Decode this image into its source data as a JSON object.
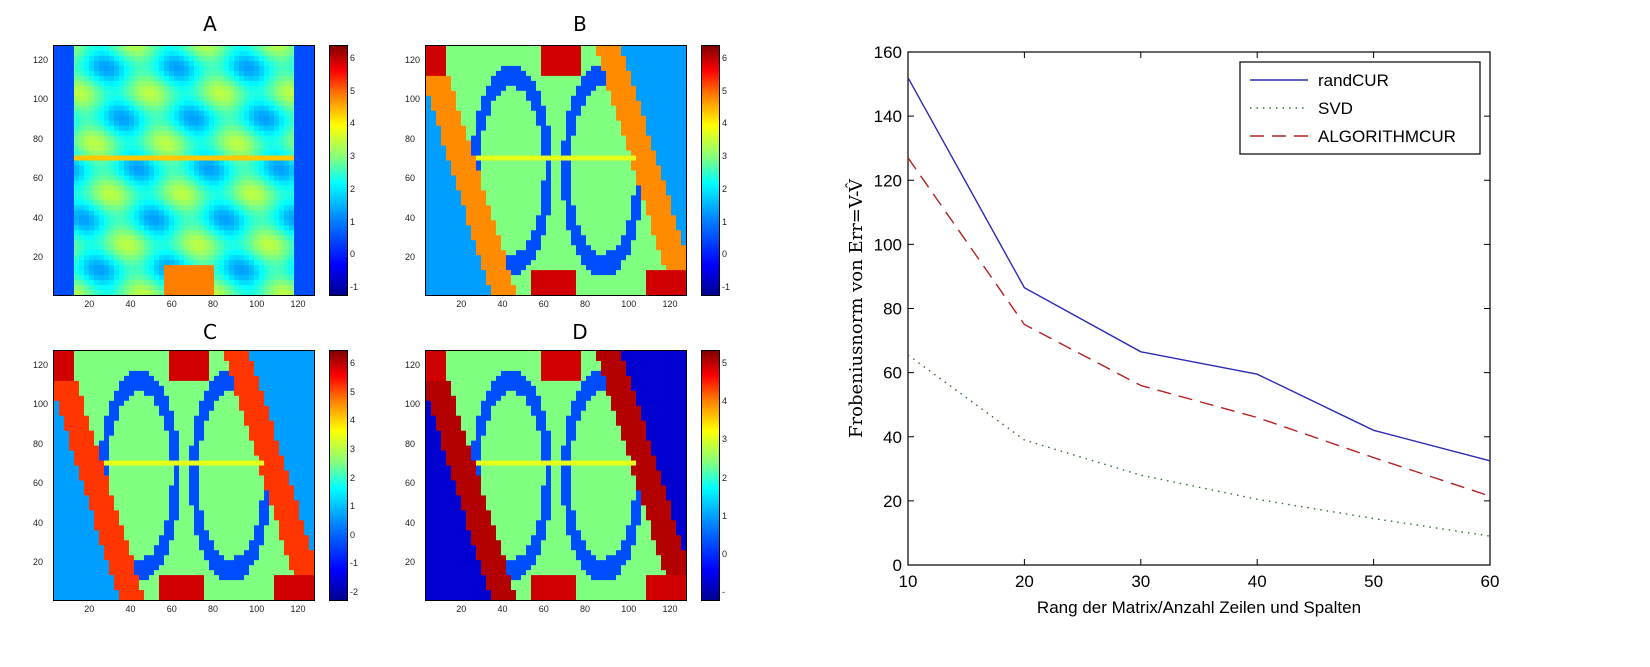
{
  "panels": [
    {
      "id": "A",
      "title": "A",
      "colorbar_ticks": [
        "6",
        "5",
        "4",
        "3",
        "2",
        "1",
        "0",
        "-1"
      ]
    },
    {
      "id": "B",
      "title": "B",
      "colorbar_ticks": [
        "6",
        "5",
        "4",
        "3",
        "2",
        "1",
        "0",
        "-1"
      ]
    },
    {
      "id": "C",
      "title": "C",
      "colorbar_ticks": [
        "6",
        "5",
        "4",
        "3",
        "2",
        "1",
        "0",
        "-1",
        "-2"
      ]
    },
    {
      "id": "D",
      "title": "D",
      "colorbar_ticks": [
        "5",
        "4",
        "3",
        "2",
        "1",
        "0",
        "-"
      ]
    }
  ],
  "heatmap_axis": {
    "x_ticks": [
      "20",
      "40",
      "60",
      "80",
      "100",
      "120"
    ],
    "y_ticks": [
      "120",
      "100",
      "80",
      "60",
      "40",
      "20"
    ]
  },
  "chart_data": [
    {
      "type": "heatmap",
      "title": "A",
      "xlim": [
        1,
        128
      ],
      "ylim": [
        1,
        128
      ],
      "colorbar_range": [
        -1.5,
        6.5
      ]
    },
    {
      "type": "heatmap",
      "title": "B",
      "xlim": [
        1,
        128
      ],
      "ylim": [
        1,
        128
      ],
      "colorbar_range": [
        -1.5,
        6.5
      ]
    },
    {
      "type": "heatmap",
      "title": "C",
      "xlim": [
        1,
        128
      ],
      "ylim": [
        1,
        128
      ],
      "colorbar_range": [
        -2.2,
        6.5
      ]
    },
    {
      "type": "heatmap",
      "title": "D",
      "xlim": [
        1,
        128
      ],
      "ylim": [
        1,
        128
      ],
      "colorbar_range": [
        -0.3,
        5.7
      ]
    },
    {
      "type": "line",
      "x": [
        10,
        20,
        30,
        40,
        50,
        60
      ],
      "series": [
        {
          "name": "randCUR",
          "values": [
            152,
            86.5,
            66.5,
            59.5,
            42,
            32.5
          ],
          "color": "#2b2bb3",
          "style": "solid"
        },
        {
          "name": "SVD",
          "values": [
            65.5,
            39,
            28,
            20.5,
            14.5,
            9
          ],
          "color": "#2f6f2f",
          "style": "dotted"
        },
        {
          "name": "ALGORITHMCUR",
          "values": [
            127,
            75,
            56,
            46,
            33.5,
            21.5
          ],
          "color": "#b22222",
          "style": "dashed"
        }
      ],
      "xlabel": "Rang der Matrix/Anzahl Zeilen und Spalten",
      "ylabel": "Frobeniusnorm von Err=V-V̂",
      "xlim": [
        10,
        60
      ],
      "ylim": [
        0,
        160
      ],
      "xticks": [
        "10",
        "20",
        "30",
        "40",
        "50",
        "60"
      ],
      "yticks": [
        "0",
        "20",
        "40",
        "60",
        "80",
        "100",
        "120",
        "140",
        "160"
      ],
      "legend_position": "top-right",
      "grid": false
    }
  ]
}
